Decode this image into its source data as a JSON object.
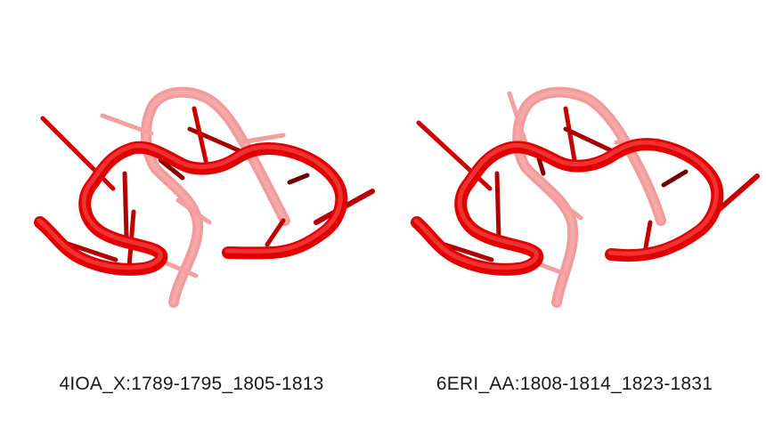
{
  "structures": [
    {
      "label": "4IOA_X:1789-1795_1805-1813",
      "color": "#ee0000"
    },
    {
      "label": "6ERI_AA:1808-1814_1823-1831",
      "color": "#ee0000"
    }
  ]
}
